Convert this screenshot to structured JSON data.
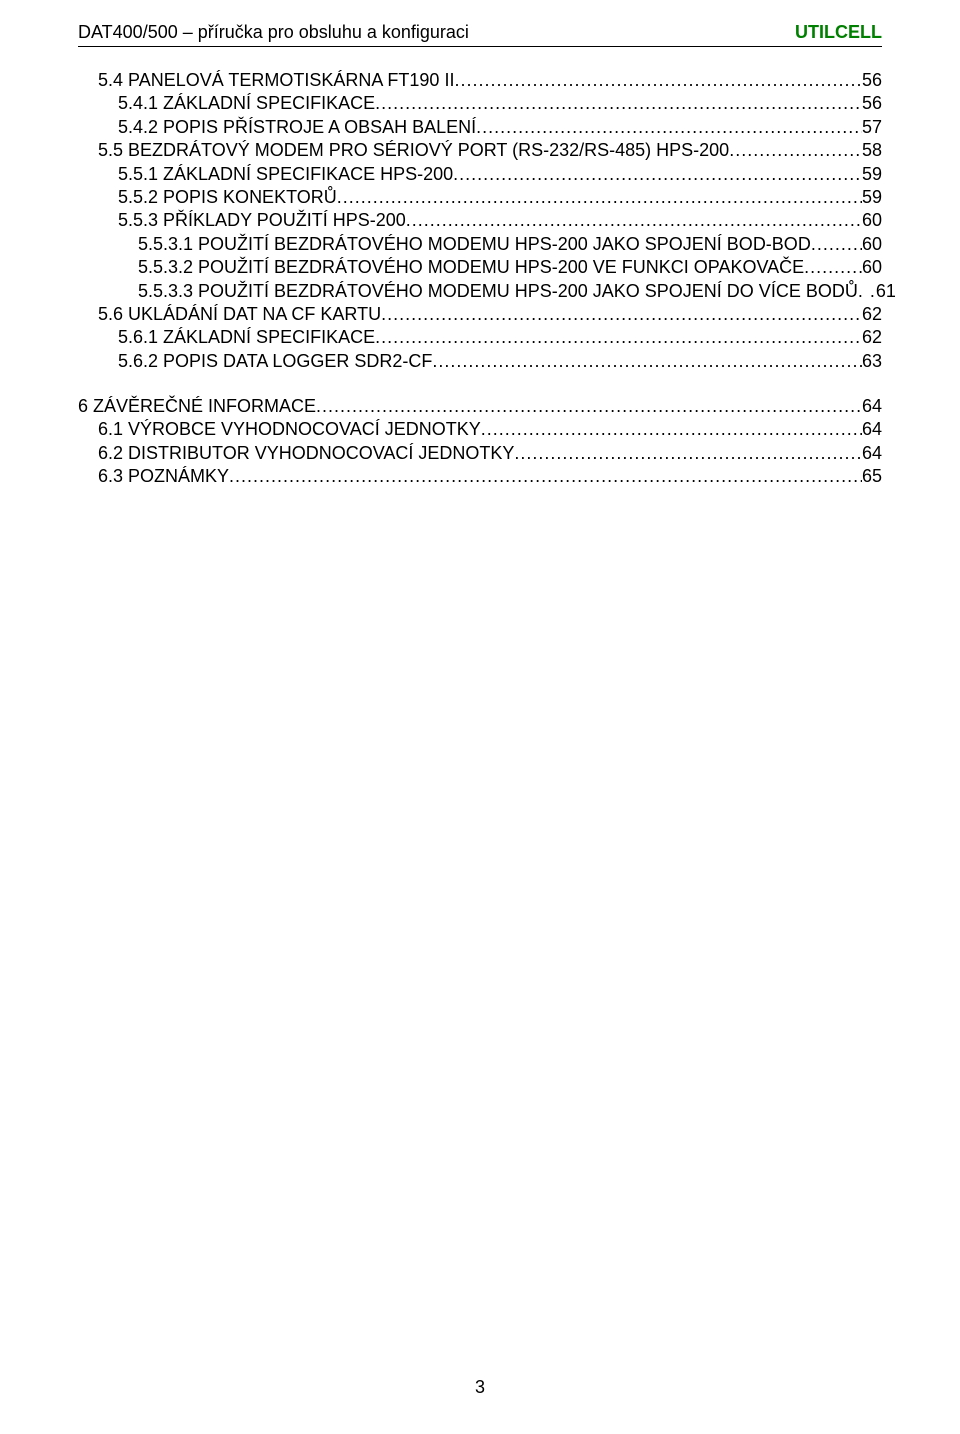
{
  "header": {
    "left": "DAT400/500 – příručka pro obsluhu a konfiguraci",
    "right": "UTILCELL"
  },
  "colors": {
    "text": "#000000",
    "brand": "#008000",
    "background": "#ffffff"
  },
  "typography": {
    "font_family": "Arial",
    "body_fontsize_pt": 13,
    "line_height": 1.3
  },
  "page_number": "3",
  "toc": {
    "groups": [
      {
        "lines": [
          {
            "indent": 1,
            "label": "5.4 PANELOVÁ TERMOTISKÁRNA FT190 II",
            "page": "56"
          },
          {
            "indent": 2,
            "label": "5.4.1 ZÁKLADNÍ SPECIFIKACE",
            "page": "56"
          },
          {
            "indent": 2,
            "label": "5.4.2 POPIS PŘÍSTROJE A OBSAH BALENÍ",
            "page": "57"
          },
          {
            "indent": 1,
            "label": "5.5 BEZDRÁTOVÝ MODEM PRO SÉRIOVÝ PORT (RS-232/RS-485) HPS-200",
            "page": "58"
          },
          {
            "indent": 2,
            "label": "5.5.1 ZÁKLADNÍ SPECIFIKACE HPS-200",
            "page": "59"
          },
          {
            "indent": 2,
            "label": "5.5.2 POPIS KONEKTORŮ",
            "page": "59"
          },
          {
            "indent": 2,
            "label": "5.5.3 PŘÍKLADY POUŽITÍ HPS-200",
            "page": "60"
          },
          {
            "indent": 3,
            "label": "5.5.3.1 POUŽITÍ BEZDRÁTOVÉHO MODEMU HPS-200 JAKO SPOJENÍ BOD-BOD",
            "page": "60"
          },
          {
            "indent": 3,
            "label": "5.5.3.2 POUŽITÍ BEZDRÁTOVÉHO MODEMU HPS-200 VE FUNKCI OPAKOVAČE",
            "page": "60"
          },
          {
            "indent": 3,
            "label": "5.5.3.3 POUŽITÍ BEZDRÁTOVÉHO MODEMU HPS-200 JAKO SPOJENÍ DO VÍCE BODŮ",
            "page": "61",
            "nodots": true
          },
          {
            "indent": 1,
            "label": "5.6 UKLÁDÁNÍ DAT NA CF KARTU",
            "page": "62"
          },
          {
            "indent": 2,
            "label": "5.6.1 ZÁKLADNÍ SPECIFIKACE",
            "page": "62"
          },
          {
            "indent": 2,
            "label": "5.6.2 POPIS DATA LOGGER SDR2-CF",
            "page": "63"
          }
        ]
      },
      {
        "lines": [
          {
            "indent": 0,
            "label": "6 ZÁVĚREČNÉ INFORMACE",
            "page": "64"
          },
          {
            "indent": 1,
            "label": "6.1 VÝROBCE VYHODNOCOVACÍ JEDNOTKY",
            "page": "64"
          },
          {
            "indent": 1,
            "label": "6.2 DISTRIBUTOR VYHODNOCOVACÍ JEDNOTKY",
            "page": "64"
          },
          {
            "indent": 1,
            "label": "6.3 POZNÁMKY",
            "page": "65"
          }
        ]
      }
    ]
  }
}
